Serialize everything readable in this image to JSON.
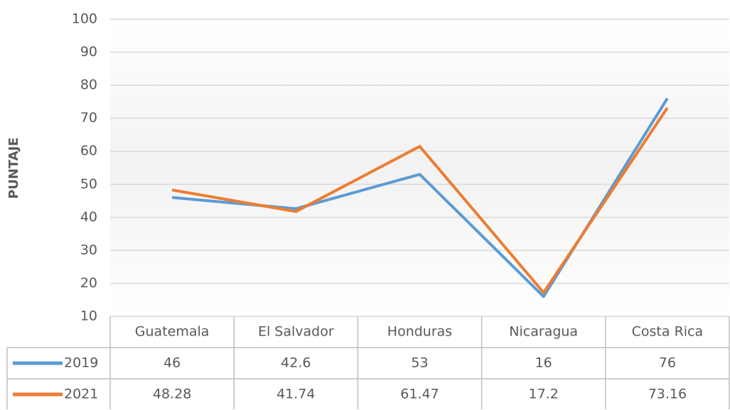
{
  "chart_data": {
    "type": "line",
    "y_axis_label": "PUNTAJE",
    "categories": [
      "Guatemala",
      "El Salvador",
      "Honduras",
      "Nicaragua",
      "Costa Rica"
    ],
    "series": [
      {
        "name": "2019",
        "color": "#5b9bd5",
        "values": [
          46,
          42.6,
          53,
          16,
          76
        ]
      },
      {
        "name": "2021",
        "color": "#ed7d31",
        "values": [
          48.28,
          41.74,
          61.47,
          17.2,
          73.16
        ]
      }
    ],
    "ylim": [
      10,
      100
    ],
    "yticks": [
      10,
      20,
      30,
      40,
      50,
      60,
      70,
      80,
      90,
      100
    ],
    "grid": true,
    "data_table": true
  }
}
